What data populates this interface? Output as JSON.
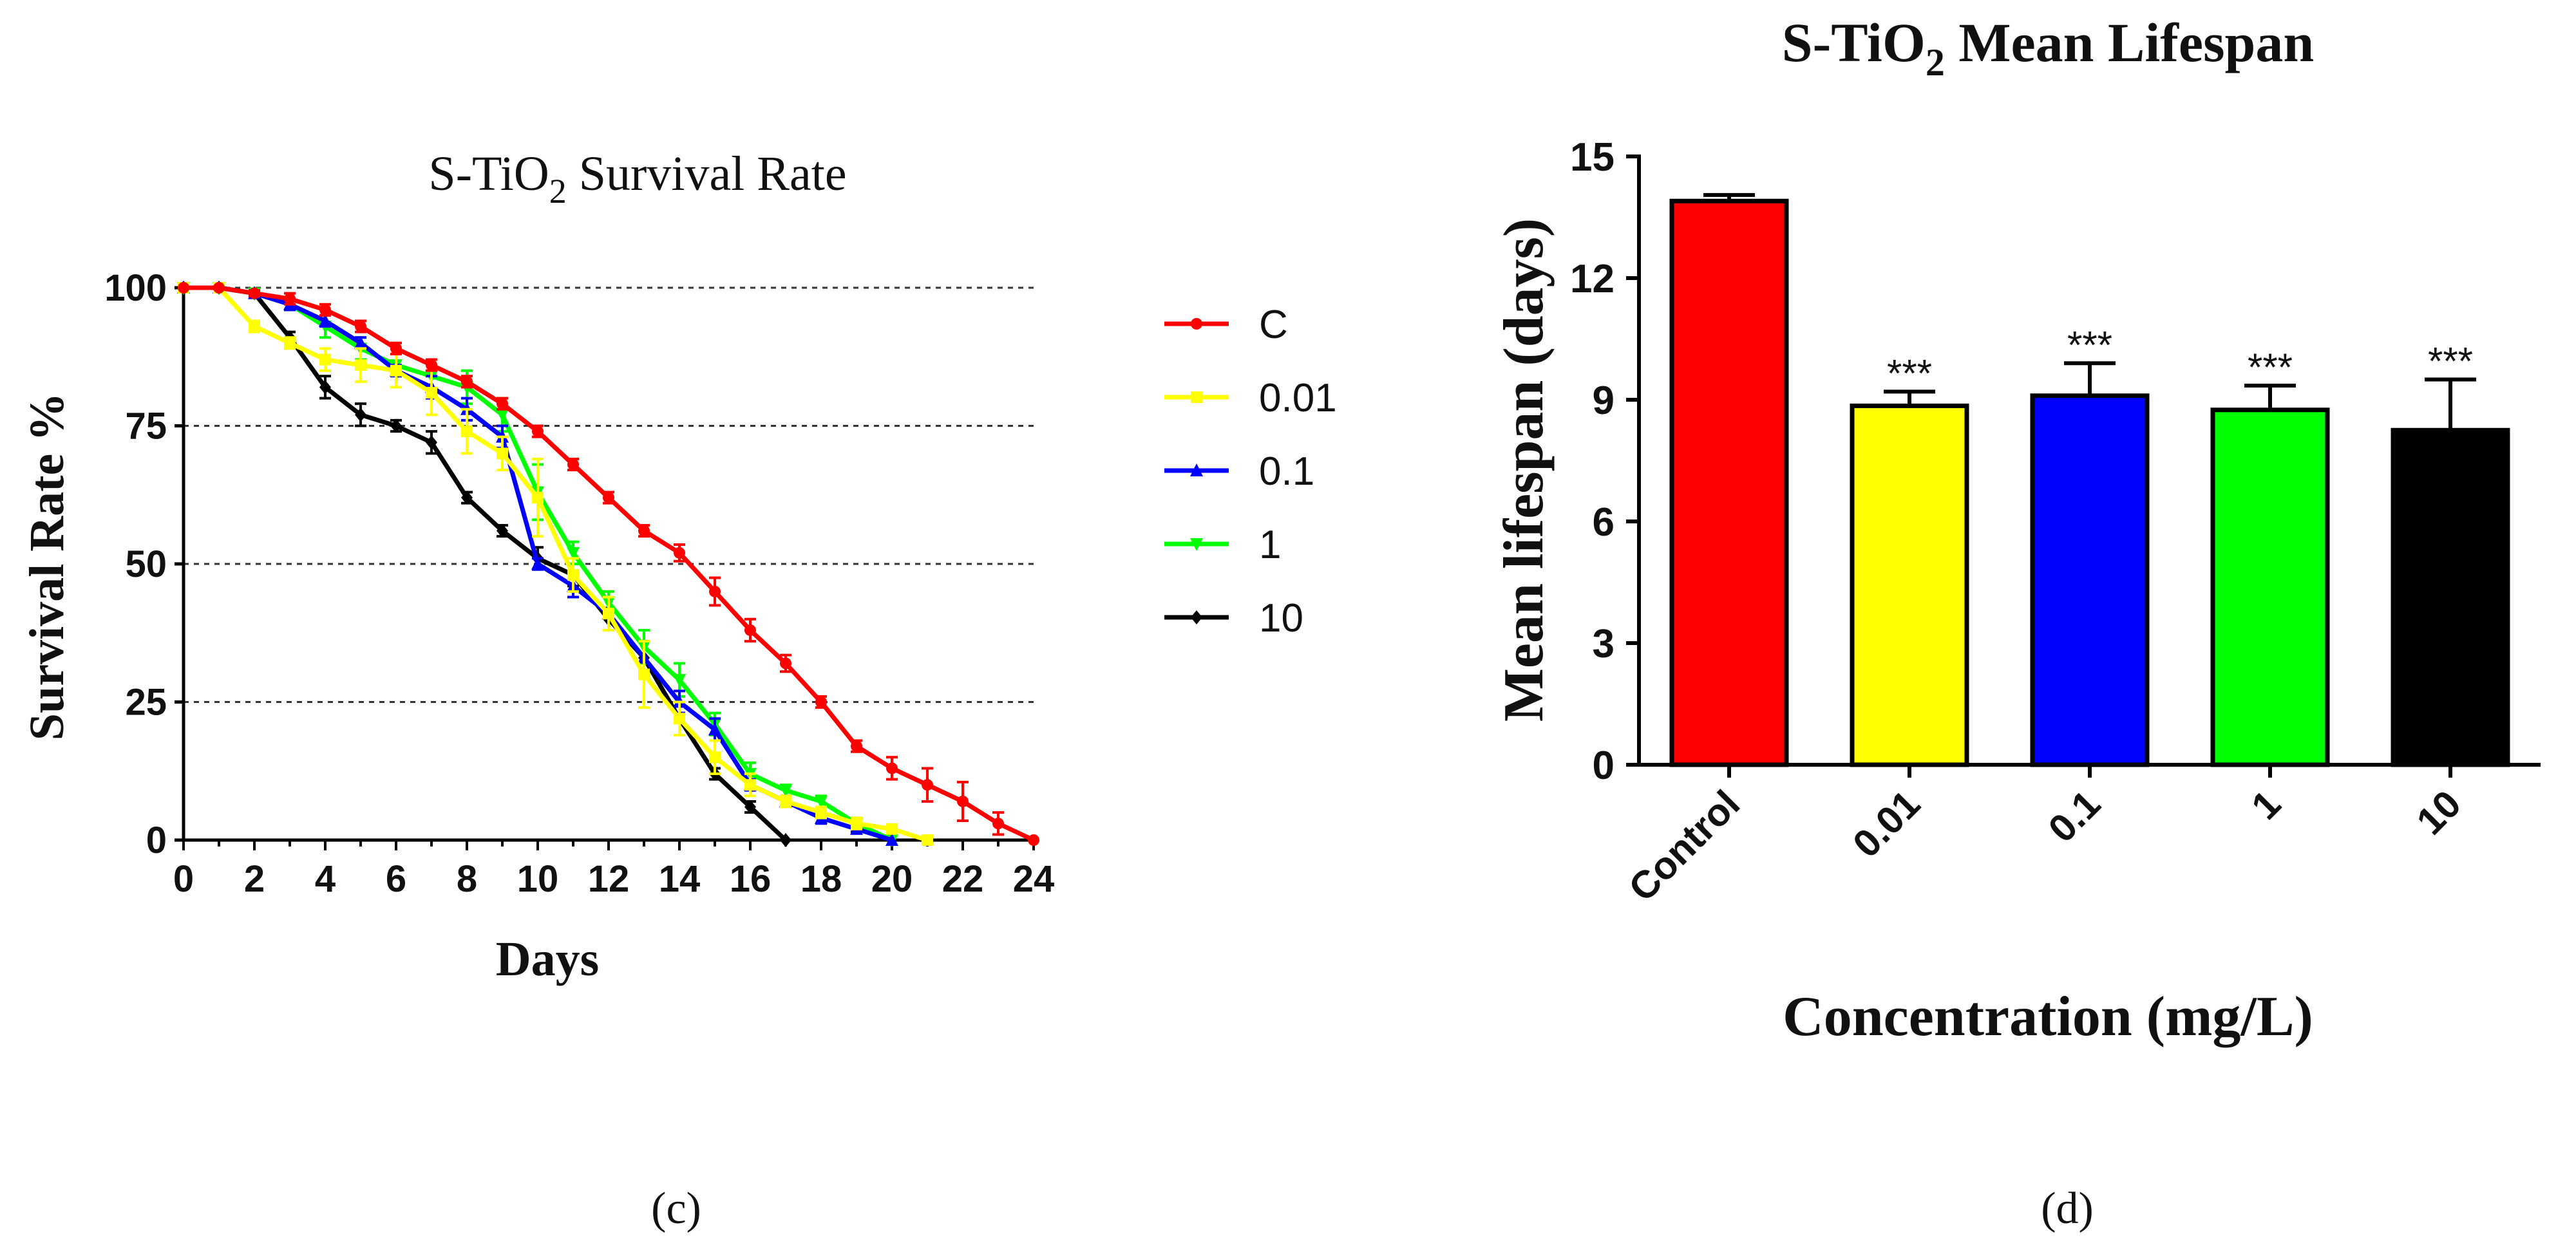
{
  "chart_data": [
    {
      "panel": "(c)",
      "type": "line",
      "title": "S-TiO",
      "title_sub": "2",
      "title_rest": " Survival Rate",
      "xlabel": "Days",
      "ylabel": "Survival Rate %",
      "xlim": [
        0,
        24
      ],
      "ylim": [
        0,
        100
      ],
      "xticks": [
        "0",
        "2",
        "4",
        "6",
        "8",
        "10",
        "12",
        "14",
        "16",
        "18",
        "20",
        "22",
        "24"
      ],
      "yticks": [
        "0",
        "25",
        "50",
        "75",
        "100"
      ],
      "grid": "horizontal-dashed",
      "legend_position": "right",
      "series": [
        {
          "name": "C",
          "color": "#ff0000",
          "marker": "circle",
          "x": [
            0,
            1,
            2,
            3,
            4,
            5,
            6,
            7,
            8,
            9,
            10,
            11,
            12,
            13,
            14,
            15,
            16,
            17,
            18,
            19,
            20,
            21,
            22,
            23,
            24
          ],
          "y": [
            100,
            100,
            99,
            98,
            96,
            93,
            89,
            86,
            83,
            79,
            74,
            68,
            62,
            56,
            52,
            45,
            38,
            32,
            25,
            17,
            13,
            10,
            7,
            3,
            0
          ],
          "err": [
            0,
            0,
            0.5,
            1,
            1,
            1,
            1,
            1,
            1,
            1,
            1,
            1,
            1,
            1,
            1.5,
            2.5,
            2,
            1.5,
            1,
            1,
            2,
            3,
            3.5,
            2,
            0
          ]
        },
        {
          "name": "0.01",
          "color": "#ffff00",
          "marker": "square",
          "x": [
            0,
            1,
            2,
            3,
            4,
            5,
            6,
            7,
            8,
            9,
            10,
            11,
            12,
            13,
            14,
            15,
            16,
            17,
            18,
            19,
            20,
            21
          ],
          "y": [
            100,
            100,
            93,
            90,
            87,
            86,
            85,
            81,
            74,
            70,
            62,
            48,
            41,
            30,
            22,
            15,
            10,
            7,
            5,
            3,
            2,
            0
          ],
          "err": [
            0,
            0,
            1,
            1,
            2,
            3,
            3,
            4,
            4,
            3,
            7,
            3,
            3,
            6,
            3,
            3,
            2,
            1,
            1,
            1,
            0.5,
            0
          ]
        },
        {
          "name": "0.1",
          "color": "#0000ff",
          "marker": "triangle-up",
          "x": [
            0,
            1,
            2,
            3,
            4,
            5,
            6,
            7,
            8,
            9,
            10,
            11,
            12,
            13,
            14,
            15,
            16,
            17,
            18,
            19,
            20
          ],
          "y": [
            100,
            100,
            99,
            97,
            94,
            90,
            85,
            82,
            78,
            73,
            50,
            46,
            41,
            33,
            25,
            20,
            10,
            7,
            4,
            2,
            0
          ],
          "err": [
            0,
            0,
            0.5,
            1,
            1,
            1,
            1,
            2,
            2,
            2,
            1,
            2,
            3,
            3,
            2,
            2,
            1,
            1,
            1,
            0.5,
            0
          ]
        },
        {
          "name": "1",
          "color": "#00ff00",
          "marker": "triangle-down",
          "x": [
            0,
            1,
            2,
            3,
            4,
            5,
            6,
            7,
            8,
            9,
            10,
            11,
            12,
            13,
            14,
            15,
            16,
            17,
            18,
            19,
            20
          ],
          "y": [
            100,
            100,
            99,
            97,
            93,
            89,
            86,
            84,
            82,
            77,
            63,
            52,
            43,
            35,
            29,
            21,
            12,
            9,
            7,
            3,
            0
          ],
          "err": [
            0,
            0,
            0.5,
            1,
            2,
            2,
            2,
            3,
            3,
            3,
            5,
            2,
            2,
            3,
            3,
            2,
            2,
            1,
            1,
            1,
            0
          ]
        },
        {
          "name": "10",
          "color": "#000000",
          "marker": "diamond",
          "x": [
            0,
            1,
            2,
            3,
            4,
            5,
            6,
            7,
            8,
            9,
            10,
            11,
            12,
            13,
            14,
            15,
            16,
            17
          ],
          "y": [
            100,
            100,
            99,
            91,
            82,
            77,
            75,
            72,
            62,
            56,
            51,
            48,
            40,
            33,
            22,
            12,
            6,
            0
          ],
          "err": [
            0,
            0,
            0.5,
            1,
            2,
            2,
            1,
            2,
            1,
            1,
            2,
            2,
            2,
            3,
            3,
            1,
            1,
            0
          ]
        }
      ]
    },
    {
      "panel": "(d)",
      "type": "bar",
      "title": "S-TiO",
      "title_sub": "2",
      "title_rest": " Mean Lifespan",
      "xlabel": "Concentration (mg/L)",
      "ylabel": "Mean lifespan (days)",
      "ylim": [
        0,
        15
      ],
      "yticks": [
        "0",
        "3",
        "6",
        "9",
        "12",
        "15"
      ],
      "categories": [
        "Control",
        "0.01",
        "0.1",
        "1",
        "10"
      ],
      "values": [
        13.9,
        8.85,
        9.1,
        8.75,
        8.25
      ],
      "errors": [
        0.15,
        0.35,
        0.8,
        0.6,
        1.25
      ],
      "colors": [
        "#ff0000",
        "#ffff00",
        "#0000ff",
        "#00ff00",
        "#000000"
      ],
      "significance": [
        "",
        "***",
        "***",
        "***",
        "***"
      ]
    }
  ]
}
